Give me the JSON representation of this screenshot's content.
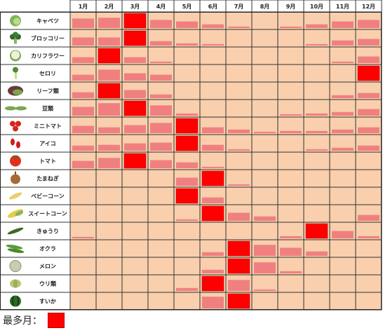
{
  "chart_data": {
    "type": "heatmap",
    "months": [
      "1月",
      "2月",
      "3月",
      "4月",
      "5月",
      "6月",
      "7月",
      "8月",
      "9月",
      "10月",
      "11月",
      "12月"
    ],
    "rows": [
      {
        "name": "キャベツ",
        "icon": "cabbage-icon",
        "values": [
          0.65,
          0.7,
          1.0,
          0.55,
          0.45,
          0.25,
          0.1,
          0.0,
          0.1,
          0.25,
          0.45,
          0.55
        ]
      },
      {
        "name": "ブロッコリー",
        "icon": "broccoli-icon",
        "values": [
          0.55,
          0.55,
          1.0,
          0.3,
          0.15,
          0.1,
          0.0,
          0.0,
          0.0,
          0.1,
          0.35,
          0.45
        ]
      },
      {
        "name": "カリフラワー",
        "icon": "cauliflower-icon",
        "values": [
          0.4,
          1.0,
          0.4,
          0.1,
          0.0,
          0.0,
          0.0,
          0.0,
          0.0,
          0.0,
          0.1,
          0.45
        ]
      },
      {
        "name": "セロリ",
        "icon": "celery-icon",
        "values": [
          0.4,
          0.75,
          0.5,
          0.4,
          0.0,
          0.0,
          0.0,
          0.0,
          0.0,
          0.0,
          0.0,
          1.0
        ]
      },
      {
        "name": "リーフ類",
        "icon": "leaf-lettuce-icon",
        "values": [
          0.4,
          1.0,
          0.55,
          0.25,
          0.0,
          0.0,
          0.0,
          0.0,
          0.0,
          0.0,
          0.2,
          0.35
        ]
      },
      {
        "name": "豆類",
        "icon": "peas-icon",
        "values": [
          0.6,
          0.85,
          1.0,
          0.7,
          0.15,
          0.0,
          0.0,
          0.0,
          0.1,
          0.15,
          0.25,
          0.45
        ]
      },
      {
        "name": "ミニトマト",
        "icon": "cherry-tomato-icon",
        "values": [
          0.5,
          0.4,
          0.55,
          0.7,
          1.0,
          0.4,
          0.25,
          0.1,
          0.15,
          0.15,
          0.25,
          0.4
        ]
      },
      {
        "name": "アイコ",
        "icon": "aiko-tomato-icon",
        "values": [
          0.35,
          0.4,
          0.5,
          0.55,
          1.0,
          0.4,
          0.1,
          0.0,
          0.0,
          0.1,
          0.2,
          0.35
        ]
      },
      {
        "name": "トマト",
        "icon": "tomato-icon",
        "values": [
          0.5,
          0.7,
          1.0,
          0.55,
          0.4,
          0.1,
          0.0,
          0.0,
          0.0,
          0.0,
          0.0,
          0.0
        ]
      },
      {
        "name": "たまねぎ",
        "icon": "onion-icon",
        "values": [
          0.0,
          0.0,
          0.0,
          0.0,
          0.55,
          1.0,
          0.1,
          0.0,
          0.0,
          0.0,
          0.0,
          0.0
        ]
      },
      {
        "name": "ベビーコーン",
        "icon": "baby-corn-icon",
        "values": [
          0.0,
          0.0,
          0.0,
          0.0,
          1.0,
          0.4,
          0.0,
          0.0,
          0.0,
          0.0,
          0.0,
          0.0
        ]
      },
      {
        "name": "スイートコーン",
        "icon": "sweet-corn-icon",
        "values": [
          0.0,
          0.0,
          0.0,
          0.0,
          0.1,
          1.0,
          0.55,
          0.3,
          0.0,
          0.0,
          0.0,
          0.4
        ]
      },
      {
        "name": "きゅうり",
        "icon": "cucumber-icon",
        "values": [
          0.1,
          0.0,
          0.0,
          0.0,
          0.0,
          0.0,
          0.0,
          0.0,
          0.15,
          1.0,
          0.5,
          0.15
        ]
      },
      {
        "name": "オクラ",
        "icon": "okra-icon",
        "values": [
          0.0,
          0.0,
          0.0,
          0.0,
          0.0,
          0.25,
          1.0,
          0.75,
          0.55,
          0.3,
          0.0,
          0.0
        ]
      },
      {
        "name": "メロン",
        "icon": "melon-icon",
        "values": [
          0.0,
          0.0,
          0.0,
          0.0,
          0.0,
          0.25,
          1.0,
          0.75,
          0.15,
          0.0,
          0.0,
          0.0
        ]
      },
      {
        "name": "ウリ類",
        "icon": "gourd-icon",
        "values": [
          0.0,
          0.0,
          0.0,
          0.0,
          0.2,
          1.0,
          0.75,
          0.1,
          0.0,
          0.0,
          0.0,
          0.0
        ]
      },
      {
        "name": "すいか",
        "icon": "watermelon-icon",
        "values": [
          0.0,
          0.0,
          0.0,
          0.0,
          0.0,
          0.8,
          1.0,
          0.0,
          0.0,
          0.0,
          0.0,
          0.0
        ]
      }
    ],
    "scale": "relative to peak month (1.0 = peak)",
    "colors": {
      "peak": "#ff0000",
      "bar": "#f08080",
      "cell": "#f9cfad",
      "header": "#ffffff"
    }
  },
  "legend": {
    "label": "最多月：",
    "color": "#ff0000"
  }
}
